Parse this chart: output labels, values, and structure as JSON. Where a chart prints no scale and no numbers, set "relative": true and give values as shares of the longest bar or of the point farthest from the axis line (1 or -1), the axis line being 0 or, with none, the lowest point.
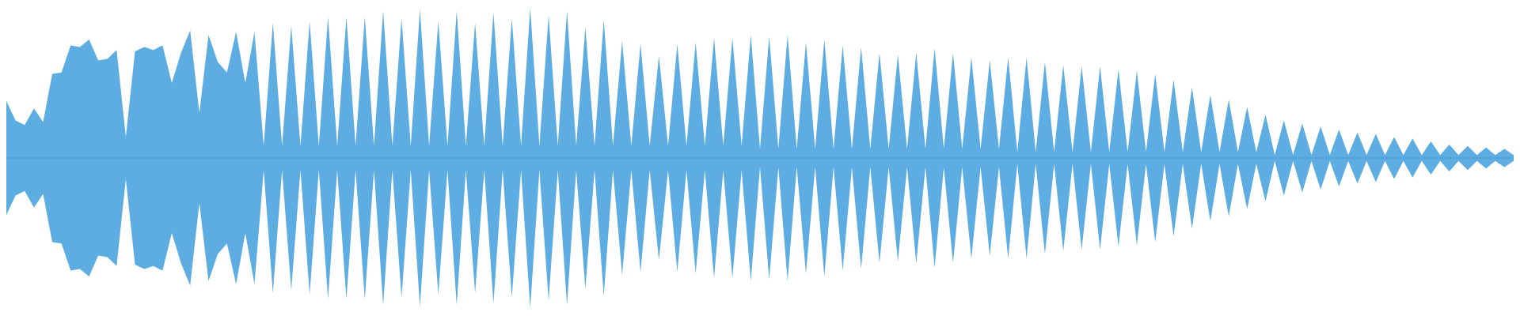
{
  "chart_data": {
    "type": "area",
    "relative": true,
    "ref_lines": [
      {
        "axis": "y",
        "value": 0,
        "color": "#4a9dd6"
      }
    ],
    "categories": [
      null,
      null,
      null,
      null,
      null,
      null,
      null,
      null,
      null,
      null,
      null,
      null,
      null,
      null,
      null,
      null,
      null,
      null,
      null,
      null,
      null,
      null,
      null,
      null,
      null,
      null,
      null,
      null,
      null,
      null,
      null,
      null,
      null,
      null,
      null,
      null,
      null,
      null,
      null,
      null,
      null,
      null,
      null,
      null,
      null,
      null,
      null,
      null,
      null,
      null,
      null,
      null,
      null,
      null,
      null,
      null,
      null,
      null,
      null,
      null,
      null,
      null,
      null,
      null,
      null,
      null,
      null,
      null,
      null,
      null,
      null,
      null,
      null,
      null,
      null,
      null,
      null,
      null,
      null,
      null,
      null,
      null,
      null,
      null,
      null,
      null,
      null,
      null,
      null,
      null,
      null,
      null,
      null,
      null,
      null,
      null,
      null,
      null,
      null,
      null,
      null,
      null,
      null,
      null,
      null,
      null,
      null,
      null,
      null,
      null,
      null,
      null,
      null,
      null,
      null,
      null,
      null,
      null,
      null,
      null,
      null,
      null,
      null,
      null,
      null,
      null,
      null,
      null,
      null,
      null,
      null,
      null,
      null,
      null,
      null,
      null,
      null,
      null,
      null,
      null,
      null,
      null,
      null,
      null,
      null,
      null,
      null,
      null,
      null,
      null,
      null,
      null,
      null,
      null,
      null,
      null,
      null,
      null,
      null,
      null,
      null,
      null,
      null,
      null,
      null
    ],
    "series": [
      {
        "color": "#5dade2",
        "values": [
          0.38,
          0.25,
          0.22,
          0.33,
          0.24,
          0.56,
          0.57,
          0.75,
          0.74,
          0.79,
          0.65,
          0.66,
          0.72,
          0.14,
          0.71,
          0.74,
          0.72,
          0.75,
          0.5,
          0.7,
          0.85,
          0.3,
          0.82,
          0.64,
          0.57,
          0.84,
          0.5,
          0.84,
          0.08,
          0.9,
          0.08,
          0.88,
          0.08,
          0.91,
          0.08,
          0.94,
          0.08,
          0.94,
          0.08,
          0.94,
          0.08,
          0.98,
          0.08,
          0.93,
          0.08,
          0.99,
          0.08,
          0.91,
          0.08,
          0.98,
          0.08,
          0.9,
          0.08,
          0.97,
          0.08,
          0.93,
          0.08,
          1,
          0.08,
          0.95,
          0.08,
          0.98,
          0.08,
          0.87,
          0.08,
          0.92,
          0.08,
          0.78,
          0.08,
          0.76,
          0.08,
          0.68,
          0.08,
          0.76,
          0.08,
          0.77,
          0.08,
          0.8,
          0.08,
          0.8,
          0.08,
          0.82,
          0.06,
          0.81,
          0.06,
          0.82,
          0.06,
          0.77,
          0.06,
          0.79,
          0.06,
          0.75,
          0.06,
          0.74,
          0.06,
          0.7,
          0.06,
          0.69,
          0.06,
          0.7,
          0.06,
          0.73,
          0.06,
          0.7,
          0.06,
          0.67,
          0.06,
          0.65,
          0.06,
          0.67,
          0.04,
          0.67,
          0.04,
          0.64,
          0.04,
          0.62,
          0.04,
          0.61,
          0.04,
          0.61,
          0.04,
          0.59,
          0.04,
          0.58,
          0.04,
          0.56,
          0.04,
          0.52,
          0.04,
          0.47,
          0.04,
          0.42,
          0.04,
          0.39,
          0.04,
          0.34,
          0.04,
          0.29,
          0.02,
          0.25,
          0.02,
          0.23,
          0.02,
          0.21,
          0.02,
          0.19,
          0.02,
          0.17,
          0.02,
          0.16,
          0.02,
          0.14,
          0.02,
          0.13,
          0.02,
          0.11,
          0.02,
          0.09,
          0.02,
          0.08,
          0.02,
          0.07,
          0.02,
          0.06,
          0.02
        ]
      },
      {
        "color": "#5dade2",
        "values": [
          -0.38,
          -0.25,
          -0.22,
          -0.33,
          -0.24,
          -0.56,
          -0.57,
          -0.75,
          -0.74,
          -0.79,
          -0.65,
          -0.66,
          -0.72,
          -0.14,
          -0.71,
          -0.74,
          -0.72,
          -0.75,
          -0.5,
          -0.7,
          -0.85,
          -0.3,
          -0.82,
          -0.64,
          -0.57,
          -0.84,
          -0.5,
          -0.84,
          -0.08,
          -0.9,
          -0.08,
          -0.88,
          -0.08,
          -0.91,
          -0.08,
          -0.94,
          -0.08,
          -0.94,
          -0.08,
          -0.94,
          -0.08,
          -0.98,
          -0.08,
          -0.93,
          -0.08,
          -0.99,
          -0.08,
          -0.91,
          -0.08,
          -0.98,
          -0.08,
          -0.9,
          -0.08,
          -0.97,
          -0.08,
          -0.93,
          -0.08,
          -1,
          -0.08,
          -0.95,
          -0.08,
          -0.98,
          -0.08,
          -0.87,
          -0.08,
          -0.92,
          -0.08,
          -0.78,
          -0.08,
          -0.76,
          -0.08,
          -0.68,
          -0.08,
          -0.76,
          -0.08,
          -0.77,
          -0.08,
          -0.8,
          -0.08,
          -0.8,
          -0.08,
          -0.82,
          -0.06,
          -0.81,
          -0.06,
          -0.82,
          -0.06,
          -0.77,
          -0.06,
          -0.79,
          -0.06,
          -0.75,
          -0.06,
          -0.74,
          -0.06,
          -0.7,
          -0.06,
          -0.69,
          -0.06,
          -0.7,
          -0.06,
          -0.73,
          -0.06,
          -0.7,
          -0.06,
          -0.67,
          -0.06,
          -0.65,
          -0.06,
          -0.67,
          -0.04,
          -0.67,
          -0.04,
          -0.64,
          -0.04,
          -0.62,
          -0.04,
          -0.61,
          -0.04,
          -0.61,
          -0.04,
          -0.59,
          -0.04,
          -0.58,
          -0.04,
          -0.56,
          -0.04,
          -0.52,
          -0.04,
          -0.47,
          -0.04,
          -0.42,
          -0.04,
          -0.39,
          -0.04,
          -0.34,
          -0.04,
          -0.29,
          -0.02,
          -0.25,
          -0.02,
          -0.23,
          -0.02,
          -0.21,
          -0.02,
          -0.19,
          -0.02,
          -0.17,
          -0.02,
          -0.16,
          -0.02,
          -0.14,
          -0.02,
          -0.13,
          -0.02,
          -0.11,
          -0.02,
          -0.09,
          -0.02,
          -0.08,
          -0.02,
          -0.07,
          -0.02,
          -0.06,
          -0.02
        ]
      }
    ]
  }
}
